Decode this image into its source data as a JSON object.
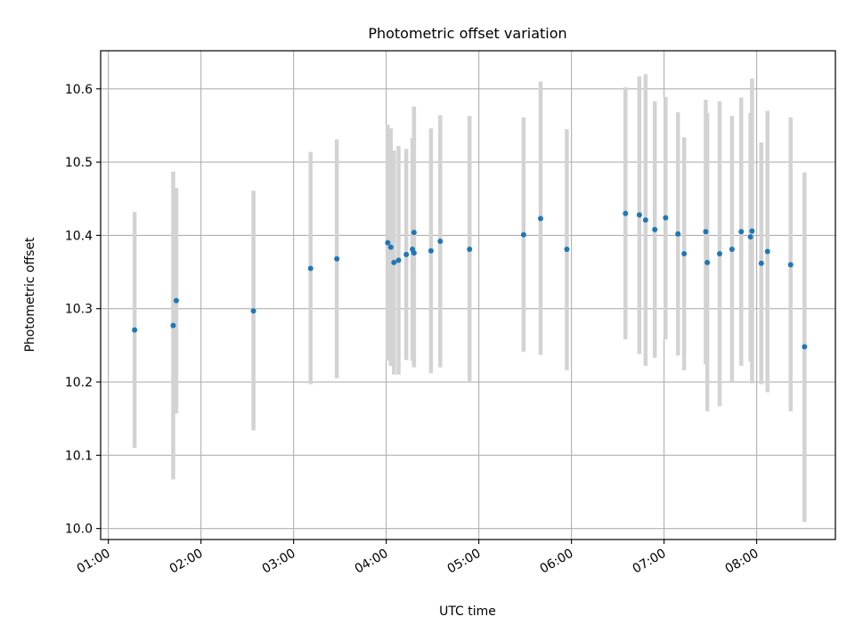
{
  "chart_data": {
    "type": "scatter",
    "title": "Photometric offset variation",
    "xlabel": "UTC time",
    "ylabel": "Photometric offset",
    "grid": true,
    "xlim": [
      "00:55",
      "08:51"
    ],
    "ylim": [
      9.985,
      10.652
    ],
    "x_ticks": [
      "01:00",
      "02:00",
      "03:00",
      "04:00",
      "05:00",
      "06:00",
      "07:00",
      "08:00"
    ],
    "y_ticks": [
      "10.0",
      "10.1",
      "10.2",
      "10.3",
      "10.4",
      "10.5",
      "10.6"
    ],
    "point_color": "#1f77b4",
    "errorbar_color": "#d3d3d3",
    "series": [
      {
        "points": [
          {
            "x": "01:17",
            "y": 10.271,
            "ylo": 10.11,
            "yhi": 10.432
          },
          {
            "x": "01:42",
            "y": 10.277,
            "ylo": 10.067,
            "yhi": 10.487
          },
          {
            "x": "01:44",
            "y": 10.311,
            "ylo": 10.157,
            "yhi": 10.465
          },
          {
            "x": "02:34",
            "y": 10.297,
            "ylo": 10.134,
            "yhi": 10.461
          },
          {
            "x": "03:11",
            "y": 10.355,
            "ylo": 10.197,
            "yhi": 10.514
          },
          {
            "x": "03:28",
            "y": 10.368,
            "ylo": 10.205,
            "yhi": 10.531
          },
          {
            "x": "04:01",
            "y": 10.39,
            "ylo": 10.229,
            "yhi": 10.551
          },
          {
            "x": "04:03",
            "y": 10.384,
            "ylo": 10.222,
            "yhi": 10.546
          },
          {
            "x": "04:05",
            "y": 10.363,
            "ylo": 10.21,
            "yhi": 10.516
          },
          {
            "x": "04:08",
            "y": 10.366,
            "ylo": 10.21,
            "yhi": 10.522
          },
          {
            "x": "04:13",
            "y": 10.374,
            "ylo": 10.23,
            "yhi": 10.518
          },
          {
            "x": "04:17",
            "y": 10.381,
            "ylo": 10.229,
            "yhi": 10.533
          },
          {
            "x": "04:18",
            "y": 10.376,
            "ylo": 10.22,
            "yhi": 10.532
          },
          {
            "x": "04:18",
            "y": 10.404,
            "ylo": 10.232,
            "yhi": 10.576
          },
          {
            "x": "04:29",
            "y": 10.379,
            "ylo": 10.212,
            "yhi": 10.546
          },
          {
            "x": "04:35",
            "y": 10.392,
            "ylo": 10.22,
            "yhi": 10.564
          },
          {
            "x": "04:54",
            "y": 10.381,
            "ylo": 10.2,
            "yhi": 10.563
          },
          {
            "x": "05:29",
            "y": 10.401,
            "ylo": 10.241,
            "yhi": 10.561
          },
          {
            "x": "05:40",
            "y": 10.423,
            "ylo": 10.237,
            "yhi": 10.61
          },
          {
            "x": "05:57",
            "y": 10.381,
            "ylo": 10.216,
            "yhi": 10.545
          },
          {
            "x": "06:35",
            "y": 10.43,
            "ylo": 10.258,
            "yhi": 10.602
          },
          {
            "x": "06:44",
            "y": 10.428,
            "ylo": 10.238,
            "yhi": 10.617
          },
          {
            "x": "06:48",
            "y": 10.421,
            "ylo": 10.222,
            "yhi": 10.62
          },
          {
            "x": "06:54",
            "y": 10.408,
            "ylo": 10.233,
            "yhi": 10.583
          },
          {
            "x": "07:01",
            "y": 10.424,
            "ylo": 10.258,
            "yhi": 10.589
          },
          {
            "x": "07:09",
            "y": 10.402,
            "ylo": 10.236,
            "yhi": 10.568
          },
          {
            "x": "07:13",
            "y": 10.375,
            "ylo": 10.216,
            "yhi": 10.534
          },
          {
            "x": "07:27",
            "y": 10.405,
            "ylo": 10.224,
            "yhi": 10.585
          },
          {
            "x": "07:28",
            "y": 10.363,
            "ylo": 10.16,
            "yhi": 10.567
          },
          {
            "x": "07:36",
            "y": 10.375,
            "ylo": 10.167,
            "yhi": 10.583
          },
          {
            "x": "07:44",
            "y": 10.381,
            "ylo": 10.2,
            "yhi": 10.563
          },
          {
            "x": "07:50",
            "y": 10.405,
            "ylo": 10.222,
            "yhi": 10.588
          },
          {
            "x": "07:56",
            "y": 10.398,
            "ylo": 10.228,
            "yhi": 10.567
          },
          {
            "x": "07:57",
            "y": 10.406,
            "ylo": 10.198,
            "yhi": 10.614
          },
          {
            "x": "08:03",
            "y": 10.362,
            "ylo": 10.197,
            "yhi": 10.527
          },
          {
            "x": "08:07",
            "y": 10.378,
            "ylo": 10.186,
            "yhi": 10.57
          },
          {
            "x": "08:22",
            "y": 10.36,
            "ylo": 10.16,
            "yhi": 10.561
          },
          {
            "x": "08:31",
            "y": 10.248,
            "ylo": 10.009,
            "yhi": 10.486
          }
        ]
      }
    ]
  }
}
